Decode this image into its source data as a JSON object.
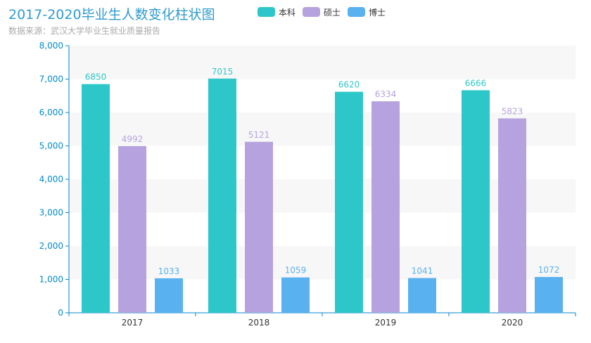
{
  "chart_data": {
    "type": "bar",
    "title": "2017-2020毕业生人数变化柱状图",
    "subtitle": "数据来源：武汉大学毕业生就业质量报告",
    "categories": [
      "2017",
      "2018",
      "2019",
      "2020"
    ],
    "series": [
      {
        "name": "本科",
        "values": [
          6850,
          7015,
          6620,
          6666
        ],
        "color": "#2ec7c9"
      },
      {
        "name": "硕士",
        "values": [
          4992,
          5121,
          6334,
          5823
        ],
        "color": "#b6a2de"
      },
      {
        "name": "博士",
        "values": [
          1033,
          1059,
          1041,
          1072
        ],
        "color": "#5ab1ef"
      }
    ],
    "ylim": [
      0,
      8000
    ],
    "yticks": [
      0,
      1000,
      2000,
      3000,
      4000,
      5000,
      6000,
      7000,
      8000
    ],
    "ytick_labels": [
      "0",
      "1,000",
      "2,000",
      "3,000",
      "4,000",
      "5,000",
      "6,000",
      "7,000",
      "8,000"
    ],
    "legend_position": "top-center",
    "grid": "horizontal-bands",
    "axis_color": "#008acd",
    "band_color": "#f7f7f7",
    "data_labels": "top"
  }
}
